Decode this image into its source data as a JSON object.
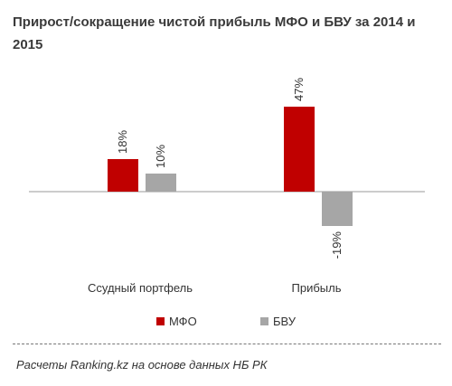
{
  "title": "Прирост/сокращение  чистой прибыль МФО и БВУ за 2014 и 2015",
  "source": "Расчеты Ranking.kz на основе данных НБ РК",
  "colors": {
    "mfo": "#c00000",
    "bvu": "#a6a6a6",
    "axis": "#999999",
    "text": "#333333"
  },
  "chart_data": {
    "type": "bar",
    "title": "Прирост/сокращение  чистой прибыль МФО и БВУ за 2014 и 2015",
    "categories": [
      "Ссудный портфель",
      "Прибыль"
    ],
    "series": [
      {
        "name": "МФО",
        "values": [
          18,
          47
        ],
        "labels": [
          "18%",
          "47%"
        ]
      },
      {
        "name": "БВУ",
        "values": [
          10,
          -19
        ],
        "labels": [
          "10%",
          "-19%"
        ]
      }
    ],
    "xlabel": "",
    "ylabel": "",
    "legend_position": "bottom",
    "grid": false
  }
}
